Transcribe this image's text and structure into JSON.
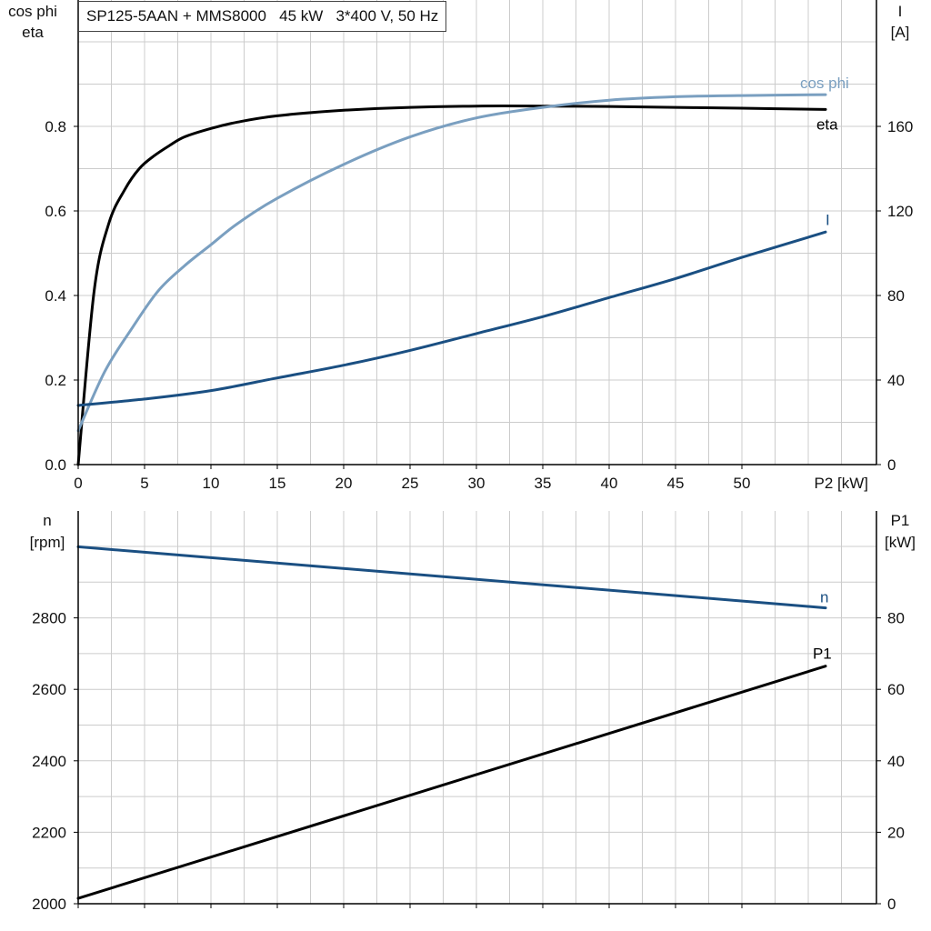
{
  "title": "SP125-5AAN + MMS8000   45 kW   3*400 V, 50 Hz",
  "colors": {
    "cos_phi": "#7a9fc0",
    "eta": "#000000",
    "current": "#1a4f82",
    "speed": "#1a4f82",
    "p1": "#000000",
    "grid": "#cccccc",
    "axis": "#000000"
  },
  "chart_data": [
    {
      "type": "line",
      "title": "SP125-5AAN + MMS8000   45 kW   3*400 V, 50 Hz",
      "xlabel": "P2 [kW]",
      "x_ticks": [
        "0",
        "5",
        "10",
        "15",
        "20",
        "25",
        "30",
        "35",
        "40",
        "45",
        "50"
      ],
      "xlim": [
        0,
        60
      ],
      "grid": true,
      "y_left": {
        "label_line1": "cos phi",
        "label_line2": "eta",
        "ticks": [
          "0.0",
          "0.2",
          "0.4",
          "0.6",
          "0.8"
        ],
        "lim": [
          0,
          1.0
        ]
      },
      "y_right": {
        "label_line1": "I",
        "label_line2": "[A]",
        "ticks": [
          "0",
          "40",
          "80",
          "120",
          "160"
        ],
        "lim": [
          0,
          200
        ]
      },
      "series": [
        {
          "name": "eta",
          "axis": "left",
          "x": [
            0,
            1.2,
            2.3,
            3.5,
            4.6,
            5.7,
            6.9,
            8,
            10,
            12,
            15,
            20,
            25,
            30,
            35,
            40,
            45,
            50,
            56.3
          ],
          "y": [
            0,
            0.41,
            0.57,
            0.65,
            0.7,
            0.73,
            0.755,
            0.775,
            0.795,
            0.81,
            0.825,
            0.838,
            0.845,
            0.848,
            0.848,
            0.847,
            0.845,
            0.843,
            0.84
          ]
        },
        {
          "name": "cos phi",
          "axis": "left",
          "x": [
            0,
            2,
            4,
            6,
            8,
            10,
            12,
            15,
            20,
            25,
            30,
            35,
            40,
            45,
            50,
            56.3
          ],
          "y": [
            0.08,
            0.22,
            0.32,
            0.41,
            0.47,
            0.52,
            0.57,
            0.63,
            0.71,
            0.775,
            0.82,
            0.845,
            0.862,
            0.87,
            0.873,
            0.875
          ]
        },
        {
          "name": "I",
          "axis": "right",
          "x": [
            0,
            5,
            10,
            15,
            20,
            25,
            30,
            35,
            40,
            45,
            50,
            56.3
          ],
          "y": [
            28,
            31,
            35,
            41,
            47,
            54,
            62,
            70,
            79,
            88,
            98,
            110
          ]
        }
      ]
    },
    {
      "type": "line",
      "xlim": [
        0,
        60
      ],
      "grid": true,
      "y_left": {
        "label_line1": "n",
        "label_line2": "[rpm]",
        "ticks": [
          "2000",
          "2200",
          "2400",
          "2600",
          "2800"
        ],
        "lim": [
          2000,
          3100
        ]
      },
      "y_right": {
        "label_line1": "P1",
        "label_line2": "[kW]",
        "ticks": [
          "0",
          "20",
          "40",
          "60",
          "80"
        ],
        "lim": [
          0,
          110
        ]
      },
      "series": [
        {
          "name": "n",
          "axis": "left",
          "x": [
            0,
            56.3
          ],
          "y": [
            2999,
            2828
          ]
        },
        {
          "name": "P1",
          "axis": "right",
          "x": [
            0,
            56.3
          ],
          "y": [
            1.5,
            66.5
          ]
        }
      ]
    }
  ]
}
